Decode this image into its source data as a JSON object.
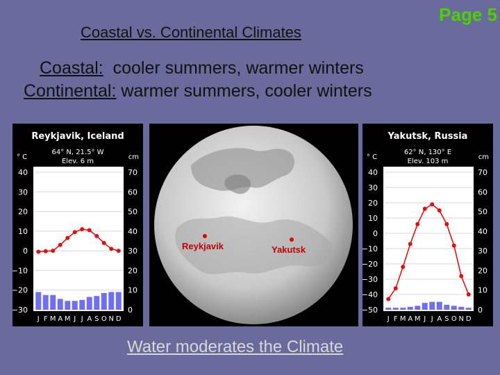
{
  "header": {
    "title": "Coastal vs. Continental Climates",
    "page": "Page 5",
    "line1_label": "Coastal:",
    "line1_text": "  cooler summers, warmer winters",
    "line2_label": "Continental:",
    "line2_text": " warmer summers, cooler winters"
  },
  "footer": {
    "text": "Water moderates the Climate"
  },
  "globe": {
    "label_left": "Reykjavik",
    "label_right": "Yakutsk"
  },
  "colors": {
    "background": "#6a6a9d",
    "temp_line": "#dd1111",
    "precip_bar": "#7070ee",
    "page_label": "#4cd000"
  },
  "chart_data": [
    {
      "type": "line+bar",
      "title": "Reykjavik, Iceland",
      "coords": "64° N, 21.5° W",
      "elev": "Elev. 6 m",
      "left_unit": "° C",
      "right_unit": "cm",
      "left_ticks": [
        "40",
        "30",
        "20",
        "10",
        "0",
        "−10",
        "−20",
        "−30"
      ],
      "right_ticks": [
        "70",
        "60",
        "50",
        "40",
        "30",
        "20",
        "10",
        "0"
      ],
      "months": [
        "J",
        "F",
        "M",
        "A",
        "M",
        "J",
        "J",
        "A",
        "S",
        "O",
        "N",
        "D"
      ],
      "temp_ylim": [
        -30,
        40
      ],
      "precip_ylim": [
        0,
        70
      ],
      "temperature_c": [
        -0.5,
        -0.2,
        0,
        3,
        6.5,
        9.5,
        11,
        10.5,
        7.5,
        4,
        1,
        0
      ],
      "precipitation_cm": [
        9,
        7.5,
        7.5,
        5.5,
        4.5,
        4.5,
        5,
        6.5,
        7,
        8.5,
        9,
        9
      ]
    },
    {
      "type": "line+bar",
      "title": "Yakutsk, Russia",
      "coords": "62° N, 130° E",
      "elev": "Elev. 103 m",
      "left_unit": "° C",
      "right_unit": "cm",
      "left_ticks": [
        "40",
        "30",
        "20",
        "10",
        "0",
        "−10",
        "−20",
        "−30",
        "−40",
        "−50"
      ],
      "right_ticks": [
        "70",
        "60",
        "50",
        "40",
        "30",
        "20",
        "10",
        "0"
      ],
      "months": [
        "J",
        "F",
        "M",
        "A",
        "M",
        "J",
        "J",
        "A",
        "S",
        "O",
        "N",
        "D"
      ],
      "temp_ylim": [
        -50,
        40
      ],
      "precip_ylim": [
        0,
        70
      ],
      "temperature_c": [
        -43,
        -36,
        -22,
        -7,
        6,
        16,
        19,
        15,
        6,
        -8,
        -28,
        -40
      ],
      "precipitation_cm": [
        1,
        1,
        1,
        1.5,
        2,
        3.5,
        4,
        4,
        2.5,
        2,
        1.5,
        1
      ]
    }
  ]
}
